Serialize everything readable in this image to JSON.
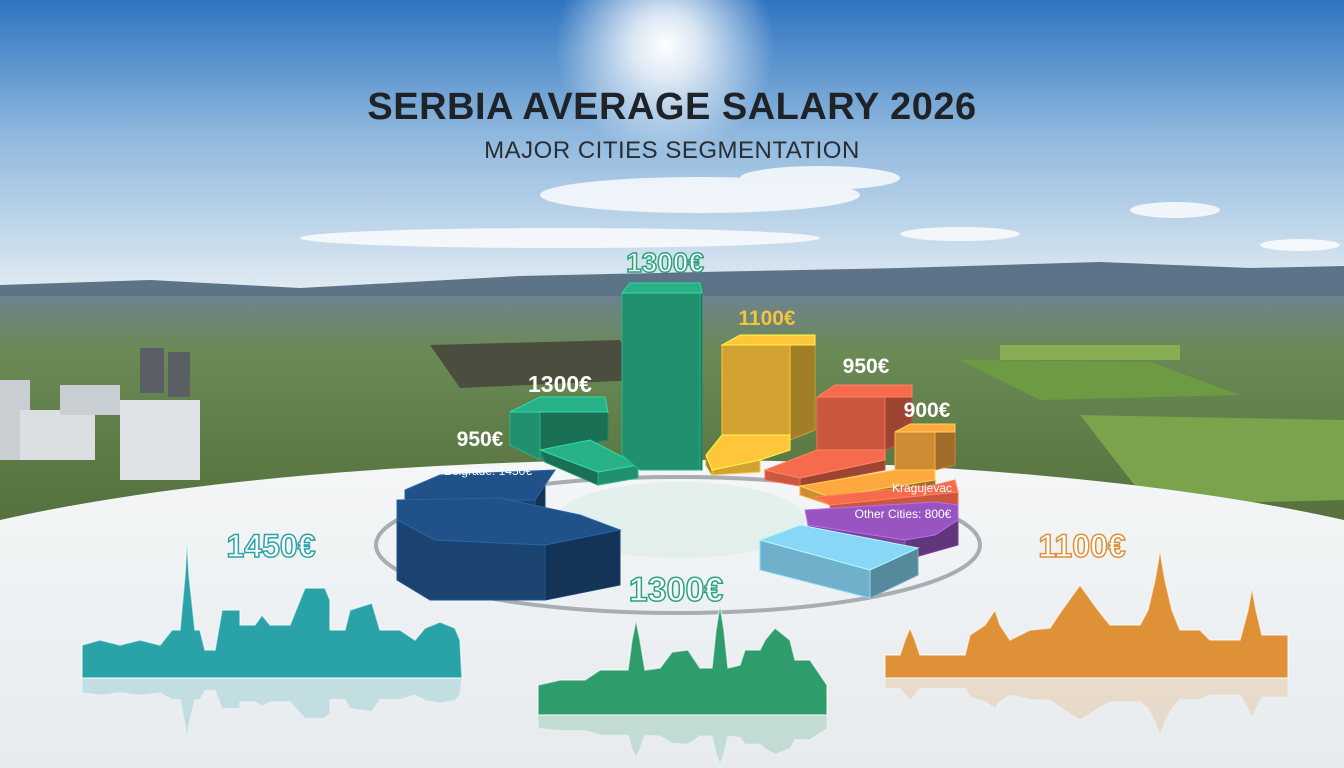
{
  "title": "SERBIA AVERAGE SALARY 2026",
  "subtitle": "MAJOR CITIES SEGMENTATION",
  "colors": {
    "navy": "#1d4a7c",
    "green": "#24a07a",
    "yellow": "#e8b436",
    "red": "#e06147",
    "orange": "#e69a3a",
    "purple": "#8a4db0",
    "light_blue": "#7cc3e0",
    "teal_skyline": "#2aa3a8",
    "green_skyline": "#2f9c6b",
    "orange_skyline": "#de9137"
  },
  "chart_data": {
    "type": "bar",
    "style": "3d segmented ring",
    "title": "SERBIA AVERAGE SALARY 2026",
    "subtitle": "MAJOR CITIES SEGMENTATION",
    "labels": {
      "top_center": "1300€",
      "yellow": "1100€",
      "red": "950€",
      "orange": "900€",
      "green_left": "1300€",
      "navy_top": "950€",
      "belgrade": "Belgrade: 1450€",
      "kragujevac": "Kragujevac",
      "other_cities": "Other Cities: 800€",
      "bottom_center": "1300€",
      "skyline_left": "1450€",
      "skyline_right": "1100€"
    },
    "series": [
      {
        "name": "Belgrade",
        "value": 1450,
        "color": "#1d4a7c"
      },
      {
        "value": 1300,
        "color": "#24a07a"
      },
      {
        "value": 1300,
        "color": "#24a07a"
      },
      {
        "value": 1100,
        "color": "#e8b436"
      },
      {
        "value": 950,
        "color": "#e06147"
      },
      {
        "value": 900,
        "color": "#e69a3a"
      },
      {
        "name": "Kragujevac",
        "color": "#e06147"
      },
      {
        "name": "Other Cities",
        "value": 800,
        "color": "#8a4db0"
      },
      {
        "color": "#7cc3e0"
      }
    ]
  }
}
